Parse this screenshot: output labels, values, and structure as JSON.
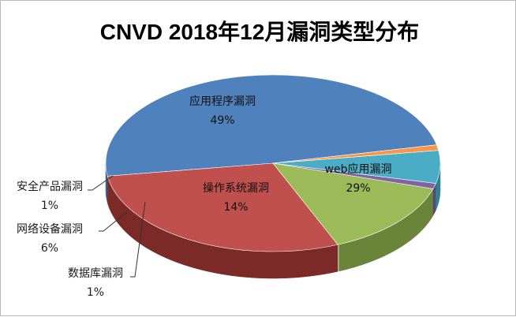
{
  "chart_data": {
    "type": "pie",
    "title": "CNVD 2018年12月漏洞类型分布",
    "slices": [
      {
        "name": "应用程序漏洞",
        "value": 49,
        "label": "49%",
        "color": "#4f81bd",
        "side": "#3a5f8c"
      },
      {
        "name": "web应用漏洞",
        "value": 29,
        "label": "29%",
        "color": "#c0504d",
        "side": "#7b2a28"
      },
      {
        "name": "操作系统漏洞",
        "value": 14,
        "label": "14%",
        "color": "#9bbb59",
        "side": "#6a8439"
      },
      {
        "name": "数据库漏洞",
        "value": 1,
        "label": "1%",
        "color": "#8064a2",
        "side": "#5a4476"
      },
      {
        "name": "网络设备漏洞",
        "value": 6,
        "label": "6%",
        "color": "#4bacc6",
        "side": "#2f7f95"
      },
      {
        "name": "安全产品漏洞",
        "value": 1,
        "label": "1%",
        "color": "#f79646",
        "side": "#b5661f"
      }
    ],
    "style": "3d-pie",
    "legend": "none"
  }
}
